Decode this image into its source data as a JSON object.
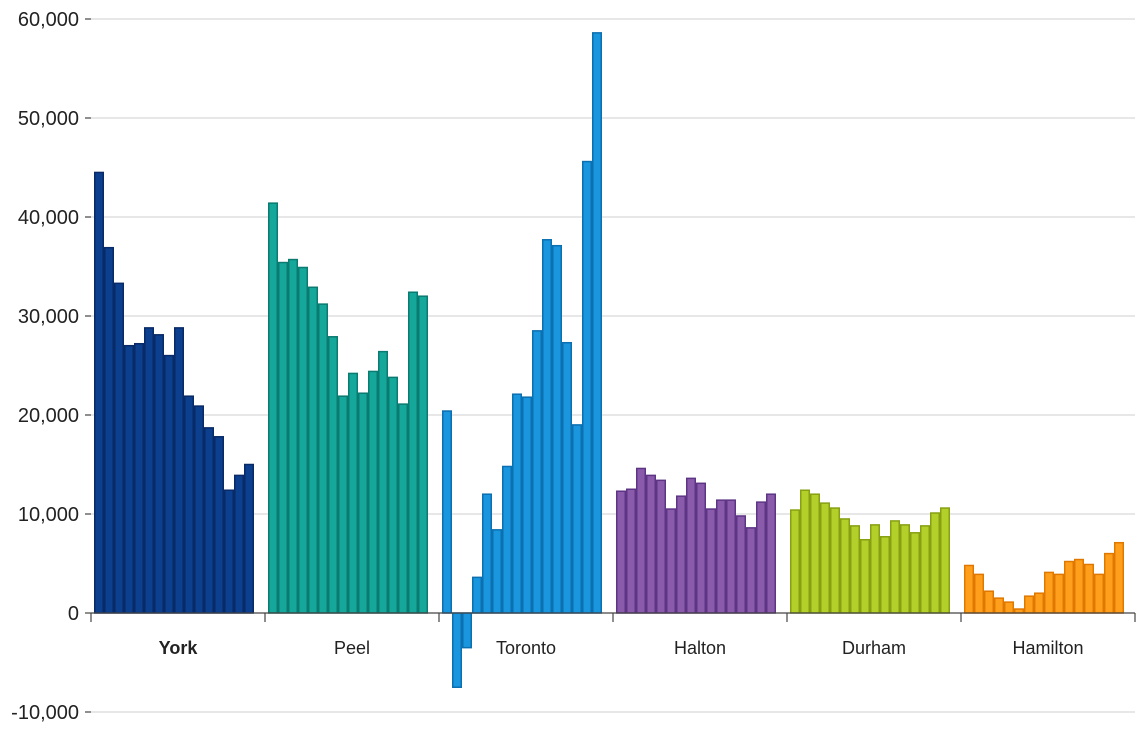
{
  "chart_data": {
    "type": "bar",
    "title": "",
    "xlabel": "",
    "ylabel": "",
    "ylim": [
      -10000,
      60000
    ],
    "yticks": [
      -10000,
      0,
      10000,
      20000,
      30000,
      40000,
      50000,
      60000
    ],
    "ytick_labels": [
      "-10,000",
      "0",
      "10,000",
      "20,000",
      "30,000",
      "40,000",
      "50,000",
      "60,000"
    ],
    "grid": true,
    "legend": "none",
    "highlighted_group": "York",
    "groups": [
      {
        "name": "York",
        "fill": "#0d3f8f",
        "stroke": "#082a66",
        "values": [
          44500,
          36900,
          33300,
          27000,
          27200,
          28800,
          28100,
          26000,
          28800,
          21900,
          20900,
          18700,
          17800,
          12400,
          13900,
          15000
        ]
      },
      {
        "name": "Peel",
        "fill": "#15a89a",
        "stroke": "#0b7a70",
        "values": [
          41400,
          35400,
          35700,
          34900,
          32900,
          31200,
          27900,
          21900,
          24200,
          22200,
          24400,
          26400,
          23800,
          21100,
          32400,
          32000
        ]
      },
      {
        "name": "Toronto",
        "fill": "#1a96de",
        "stroke": "#0b6fb0",
        "values": [
          20400,
          -7500,
          -3500,
          3600,
          12000,
          8400,
          14800,
          22100,
          21800,
          28500,
          37700,
          37100,
          27300,
          19000,
          45600,
          58600
        ]
      },
      {
        "name": "Halton",
        "fill": "#8a5aab",
        "stroke": "#5e3585",
        "values": [
          12300,
          12500,
          14600,
          13900,
          13400,
          10500,
          11800,
          13600,
          13100,
          10500,
          11400,
          11400,
          9800,
          8600,
          11200,
          12000
        ]
      },
      {
        "name": "Durham",
        "fill": "#b3cf2a",
        "stroke": "#86a012",
        "values": [
          10400,
          12400,
          12000,
          11100,
          10600,
          9500,
          8800,
          7400,
          8900,
          7700,
          9300,
          8900,
          8100,
          8800,
          10100,
          10600
        ]
      },
      {
        "name": "Hamilton",
        "fill": "#ff9f1c",
        "stroke": "#e07800",
        "values": [
          4800,
          3900,
          2200,
          1500,
          1100,
          400,
          1700,
          2000,
          4100,
          3900,
          5200,
          5400,
          4900,
          3900,
          6000,
          7100
        ]
      }
    ]
  }
}
